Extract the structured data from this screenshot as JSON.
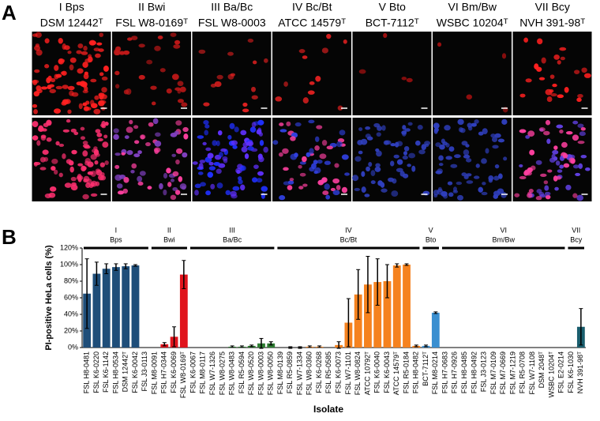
{
  "panel_a": {
    "label": "A",
    "columns": [
      {
        "title": "I Bps",
        "strain": "DSM 12442ᵀ"
      },
      {
        "title": "II Bwi",
        "strain": "FSL W8-0169ᵀ"
      },
      {
        "title": "III Ba/Bc",
        "strain": "FSL W8-0003"
      },
      {
        "title": "IV Bc/Bt",
        "strain": "ATCC 14579ᵀ"
      },
      {
        "title": "V Bto",
        "strain": "BCT-7112ᵀ"
      },
      {
        "title": "VI Bm/Bw",
        "strain": "WSBC 10204ᵀ"
      },
      {
        "title": "VII Bcy",
        "strain": "NVH 391-98ᵀ"
      }
    ]
  },
  "chart_data": {
    "type": "bar",
    "panel_label": "B",
    "y_label": "PI-positive HeLa cells (%)",
    "x_label": "Isolate",
    "ylim": [
      0,
      120
    ],
    "yticks": [
      {
        "value": 0,
        "label": "0%"
      },
      {
        "value": 20,
        "label": "20%"
      },
      {
        "value": 40,
        "label": "40%"
      },
      {
        "value": 60,
        "label": "60%"
      },
      {
        "value": 80,
        "label": "80%"
      },
      {
        "value": 100,
        "label": "100%"
      },
      {
        "value": 120,
        "label": "120%"
      }
    ],
    "groups": [
      {
        "roman": "I",
        "name": "Bps",
        "color": "#1f4e79",
        "categories": [
          "FSL H8-0481",
          "FSL K6-0220",
          "FSL K6-1142",
          "FSL H8-0534",
          "DSM 12442ᵀ",
          "FSL K6-0042",
          "FSL J3-0113"
        ],
        "values": [
          65,
          89,
          95,
          97,
          98,
          99,
          0
        ],
        "errors": [
          42,
          14,
          6,
          4,
          3,
          1,
          null
        ]
      },
      {
        "roman": "II",
        "name": "Bwi",
        "color": "#e0141c",
        "categories": [
          "FSL M8-0091",
          "FSL H7-0344",
          "FSL K6-0069",
          "FSL W8-0169ᵀ"
        ],
        "values": [
          0,
          4,
          13,
          88
        ],
        "errors": [
          null,
          2,
          12,
          17
        ]
      },
      {
        "roman": "III",
        "name": "Ba/Bc",
        "color": "#2e7d32",
        "categories": [
          "FSL K6-0067",
          "FSL M8-0117",
          "FSL W7-1326",
          "FSL W8-0275",
          "FSL W8-0483",
          "FSL R5-0594",
          "FSL W8-0520",
          "FSL W8-0003",
          "FSL W8-0050"
        ],
        "values": [
          0,
          0,
          0,
          0,
          1,
          1,
          2,
          5,
          5
        ],
        "errors": [
          null,
          null,
          null,
          null,
          1,
          1,
          1,
          6,
          2
        ]
      },
      {
        "roman": "IV",
        "name": "Bc/Bt",
        "color": "#f5821f",
        "categories": [
          "FSL M8-0139",
          "FSL R5-0859",
          "FSL W7-1334",
          "FSL W8-0360",
          "FSL K6-0268",
          "FSL R5-0585",
          "FSL K6-0073",
          "FSL W7-1101",
          "FSL W8-0824",
          "ATCC 10792ᵀ",
          "FSL K6-0040",
          "FSL K6-0043",
          "ATCC 14579ᵀ",
          "FSL R5-0184",
          "FSL H8-0482"
        ],
        "values": [
          0,
          0,
          0,
          1,
          1,
          0,
          3,
          30,
          64,
          76,
          79,
          80,
          99,
          100,
          2
        ],
        "errors": [
          null,
          1,
          1,
          1,
          1,
          null,
          4,
          29,
          30,
          34,
          28,
          20,
          2,
          1,
          1
        ]
      },
      {
        "roman": "V",
        "name": "Bto",
        "color": "#3a8fd0",
        "categories": [
          "BCT-7112ᵀ",
          "FSL M8-0214"
        ],
        "values": [
          2,
          42
        ],
        "errors": [
          1,
          1
        ]
      },
      {
        "roman": "VI",
        "name": "Bm/Bw",
        "color": "#3a8fd0",
        "categories": [
          "FSL H7-0683",
          "FSL H7-0926",
          "FSL H8-0485",
          "FSL H8-0492",
          "FSL J3-0123",
          "FSL M7-0109",
          "FSL M7-0669",
          "FSL M7-1219",
          "FSL R5-0708",
          "FSL W7-1108",
          "DSM 2048ᵀ",
          "WSBC 10204ᵀ",
          "FSL E2-0214"
        ],
        "values": [
          0,
          0,
          0,
          0,
          0,
          0,
          0,
          0,
          0,
          0,
          0,
          0,
          0
        ],
        "errors": [
          null,
          null,
          null,
          null,
          null,
          null,
          null,
          null,
          null,
          null,
          null,
          null,
          null
        ]
      },
      {
        "roman": "VII",
        "name": "Bcy",
        "color": "#1a5e6e",
        "categories": [
          "FSL K6-1030",
          "NVH 391-98ᵀ"
        ],
        "values": [
          0,
          25
        ],
        "errors": [
          null,
          22
        ]
      }
    ]
  }
}
